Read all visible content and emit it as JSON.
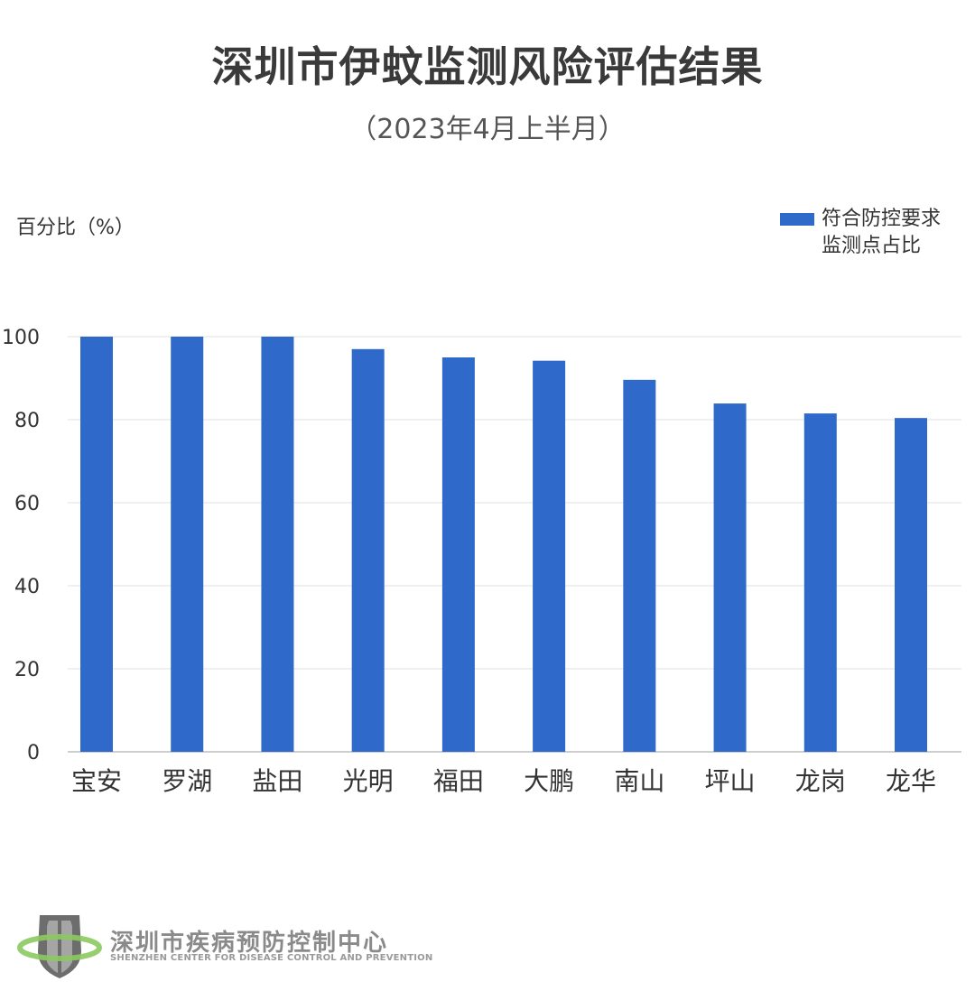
{
  "header": {
    "title": "深圳市伊蚊监测风险评估结果",
    "subtitle": "（2023年4月上半月）"
  },
  "chart_data": {
    "type": "bar",
    "ylabel": "百分比（%）",
    "categories": [
      "宝安",
      "罗湖",
      "盐田",
      "光明",
      "福田",
      "大鹏",
      "南山",
      "坪山",
      "龙岗",
      "龙华"
    ],
    "series": [
      {
        "name_lines": [
          "符合防控要求",
          "监测点占比"
        ],
        "color": "#2f69c9",
        "values": [
          100,
          100,
          100,
          97,
          95,
          94.2,
          89.6,
          83.9,
          81.5,
          80.4
        ]
      }
    ],
    "yticks": [
      "0",
      "20",
      "40",
      "60",
      "80",
      "100"
    ],
    "ylim": [
      0,
      100
    ],
    "grid": true,
    "legend_position": "top-right"
  },
  "footer": {
    "org_name": "深圳市疾病预防控制中心",
    "org_name_en": "SHENZHEN CENTER FOR DISEASE CONTROL AND PREVENTION",
    "logo_icon": "cdc-shield-logo-icon"
  }
}
